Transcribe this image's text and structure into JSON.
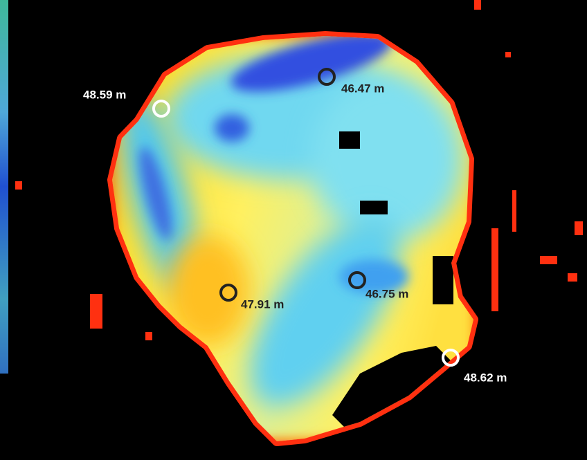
{
  "annotations": [
    {
      "label": "48.59 m"
    },
    {
      "label": "46.47 m"
    },
    {
      "label": "47.91 m"
    },
    {
      "label": "46.75 m"
    },
    {
      "label": "48.62 m"
    }
  ]
}
